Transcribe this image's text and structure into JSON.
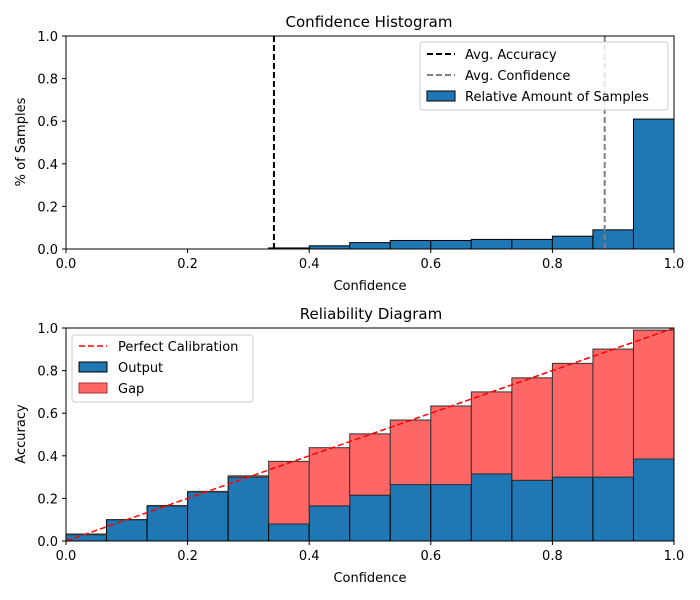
{
  "chart_data": [
    {
      "type": "bar",
      "title": "Confidence Histogram",
      "xlabel": "Confidence",
      "ylabel": "% of Samples",
      "xlim": [
        0,
        1
      ],
      "ylim": [
        0,
        1
      ],
      "xticks": [
        "0.0",
        "0.2",
        "0.4",
        "0.6",
        "0.8",
        "1.0"
      ],
      "yticks": [
        "0.0",
        "0.2",
        "0.4",
        "0.6",
        "0.8",
        "1.0"
      ],
      "bin_count": 15,
      "values": [
        0.0,
        0.0,
        0.0,
        0.0,
        0.0,
        0.005,
        0.015,
        0.03,
        0.04,
        0.04,
        0.045,
        0.045,
        0.06,
        0.09,
        0.61
      ],
      "avg_accuracy": 0.342,
      "avg_confidence": 0.886,
      "legend_position": "upper-right",
      "legend": [
        "Avg. Accuracy",
        "Avg. Confidence",
        "Relative Amount of Samples"
      ],
      "colors": {
        "bars": "#1f77b4",
        "avg_accuracy": "#000000",
        "avg_confidence": "#808080"
      }
    },
    {
      "type": "bar",
      "title": "Reliability Diagram",
      "xlabel": "Confidence",
      "ylabel": "Accuracy",
      "xlim": [
        0,
        1
      ],
      "ylim": [
        0,
        1
      ],
      "xticks": [
        "0.0",
        "0.2",
        "0.4",
        "0.6",
        "0.8",
        "1.0"
      ],
      "yticks": [
        "0.0",
        "0.2",
        "0.4",
        "0.6",
        "0.8",
        "1.0"
      ],
      "bin_count": 15,
      "output": [
        0.03,
        0.1,
        0.165,
        0.23,
        0.3,
        0.08,
        0.165,
        0.215,
        0.265,
        0.265,
        0.315,
        0.285,
        0.3,
        0.3,
        0.385
      ],
      "expected": [
        0.033,
        0.1,
        0.167,
        0.233,
        0.306,
        0.374,
        0.438,
        0.503,
        0.568,
        0.634,
        0.7,
        0.766,
        0.834,
        0.901,
        0.99
      ],
      "legend_position": "upper-left",
      "legend": [
        "Perfect Calibration",
        "Output",
        "Gap"
      ],
      "colors": {
        "output": "#1f77b4",
        "gap": "#ff6666",
        "perfect": "#ff0000"
      }
    }
  ]
}
